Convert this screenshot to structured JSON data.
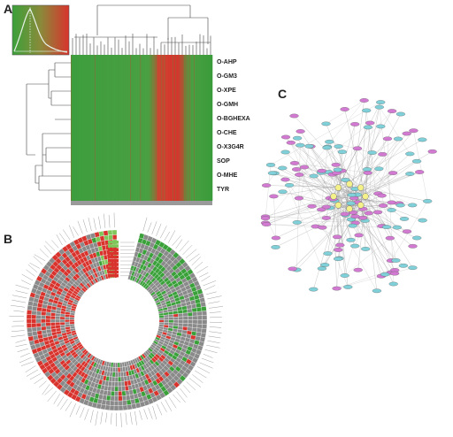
{
  "panels": {
    "a": "A",
    "b": "B",
    "c": "C"
  },
  "heatmap_rows": [
    "O-AHP",
    "O-GM3",
    "O-XPE",
    "O-GMH",
    "O-BGHEXA",
    "O-CHE",
    "O-X3G4R",
    "SOP",
    "O-MHE",
    "TYR"
  ],
  "colors": {
    "green": "#3aa13a",
    "green_light": "#7fc65a",
    "red": "#d8332d",
    "grey": "#8a8a8a",
    "node_pink": "#d27ad2",
    "node_cyan": "#7fd0d8",
    "node_yellow": "#f4f08a",
    "edge": "#9a9a9a"
  }
}
